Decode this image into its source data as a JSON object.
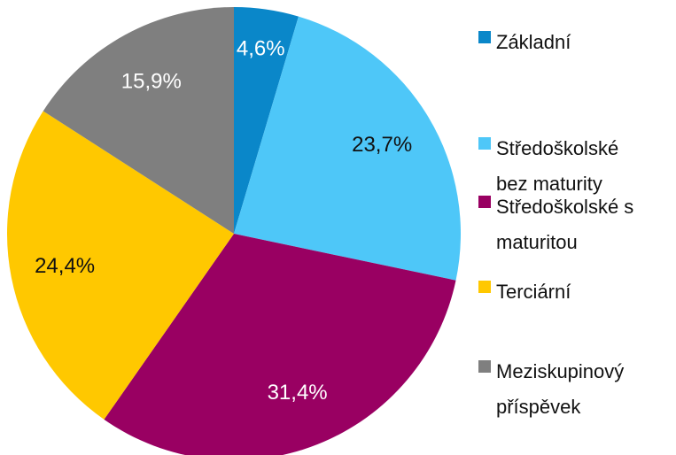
{
  "chart_data": {
    "type": "pie",
    "categories": [
      "Základní",
      "Středoškolské bez maturity",
      "Středoškolské s maturitou",
      "Terciární",
      "Meziskupinový příspěvek"
    ],
    "values": [
      4.6,
      23.7,
      31.4,
      24.4,
      15.9
    ],
    "value_labels": [
      "4,6%",
      "23,7%",
      "31,4%",
      "24,4%",
      "15,9%"
    ],
    "colors": [
      "#0a87c9",
      "#4ec7f8",
      "#990062",
      "#ffc800",
      "#7f7f7f"
    ],
    "legend": "right"
  }
}
